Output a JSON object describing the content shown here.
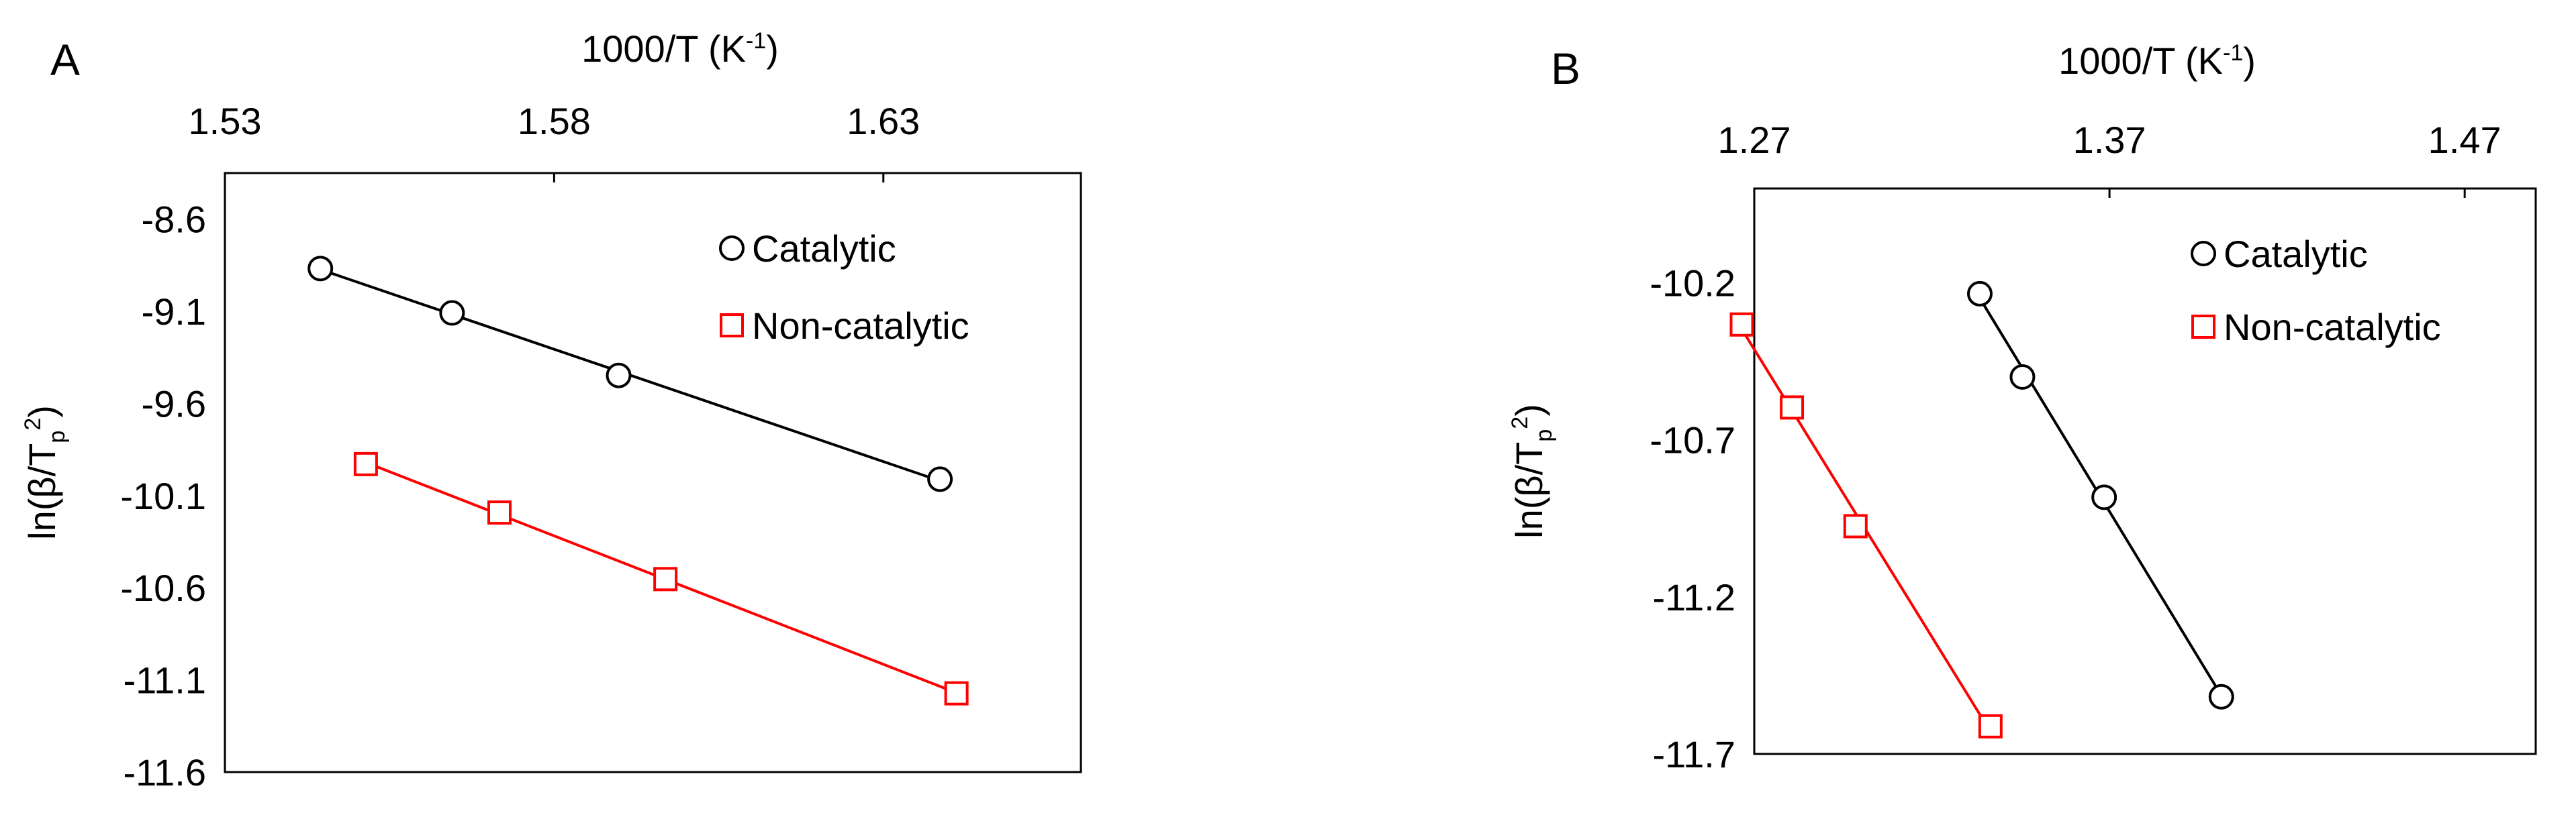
{
  "chart_data": [
    {
      "type": "scatter",
      "panel_label": "A",
      "xlabel": {
        "main": "1000/T (K",
        "sup": "-1",
        "end": ")"
      },
      "ylabel": {
        "main": "ln(β/T",
        "sub": "p",
        "sup": "2",
        "end": ")"
      },
      "x_axis_position": "top",
      "xlim": [
        1.53,
        1.66
      ],
      "ylim": [
        -11.6,
        -8.35
      ],
      "xticks": [
        1.53,
        1.58,
        1.63
      ],
      "yticks": [
        -8.6,
        -9.1,
        -9.6,
        -10.1,
        -10.6,
        -11.1,
        -11.6
      ],
      "xtick_labels": [
        "1.53",
        "1.58",
        "1.63"
      ],
      "ytick_labels": [
        "-8.6",
        "-9.1",
        "-9.6",
        "-10.1",
        "-10.6",
        "-11.1",
        "-11.6"
      ],
      "grid": false,
      "legend_position": "top-right",
      "series": [
        {
          "name": "Catalytic",
          "marker": "circle",
          "color": "#000000",
          "x": [
            1.5445,
            1.5645,
            1.5898,
            1.6386
          ],
          "y": [
            -8.868,
            -9.109,
            -9.448,
            -10.011
          ],
          "fit_line": true
        },
        {
          "name": "Non-catalytic",
          "marker": "square",
          "color": "#ff0000",
          "x": [
            1.5514,
            1.5717,
            1.5969,
            1.6411
          ],
          "y": [
            -9.929,
            -10.192,
            -10.553,
            -11.173
          ],
          "fit_line": true
        }
      ]
    },
    {
      "type": "scatter",
      "panel_label": "B",
      "xlabel": {
        "main": "1000/T (K",
        "sup": "-1",
        "end": ")"
      },
      "ylabel": {
        "main": "ln(β/T",
        "sub": "p",
        "sup": "2",
        "end": ")"
      },
      "x_axis_position": "top",
      "xlim": [
        1.27,
        1.49
      ],
      "ylim": [
        -11.7,
        -9.9
      ],
      "xticks": [
        1.27,
        1.37,
        1.47
      ],
      "yticks": [
        -10.2,
        -10.7,
        -11.2,
        -11.7
      ],
      "xtick_labels": [
        "1.27",
        "1.37",
        "1.47"
      ],
      "ytick_labels": [
        "-10.2",
        "-10.7",
        "-11.2",
        "-11.7"
      ],
      "grid": false,
      "legend_position": "top-right",
      "series": [
        {
          "name": "Catalytic",
          "marker": "circle",
          "color": "#000000",
          "x": [
            1.3335,
            1.3455,
            1.3685,
            1.4015
          ],
          "y": [
            -10.235,
            -10.5,
            -10.883,
            -11.518
          ],
          "fit_line": true
        },
        {
          "name": "Non-catalytic",
          "marker": "square",
          "color": "#ff0000",
          "x": [
            1.2665,
            1.2806,
            1.2985,
            1.3365
          ],
          "y": [
            -10.333,
            -10.597,
            -10.975,
            -11.612
          ],
          "fit_line": true
        }
      ]
    }
  ]
}
